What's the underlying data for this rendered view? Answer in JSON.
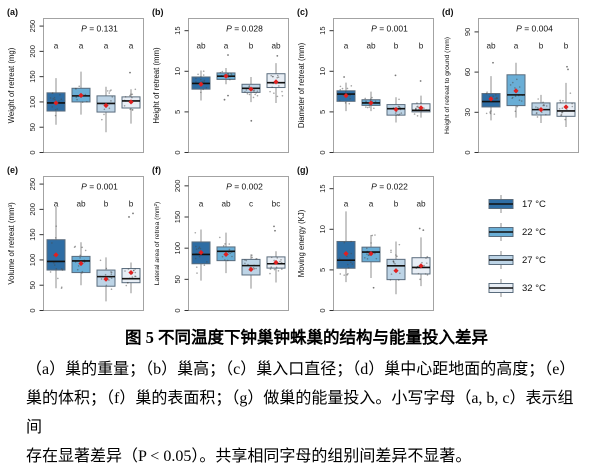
{
  "colors": {
    "t17": "#2e6da4",
    "t22": "#6aaed6",
    "t27": "#bdd4e6",
    "t32": "#e8eef5",
    "box_stroke": "#5a6c7d",
    "median": "#111111",
    "mean_marker": "#e02020",
    "whisker": "#8f8f8f",
    "frame": "#a3a3a3",
    "jitter_dot": "#4a4a4a",
    "tick_text": "#222222"
  },
  "chart_data": {
    "type": "box",
    "temperatures": [
      "17 °C",
      "22 °C",
      "27 °C",
      "32 °C"
    ],
    "legend_position": "right of bottom row",
    "mean_marker": "red diamond",
    "panels": [
      {
        "id": "a",
        "label": "(a)",
        "p_label": "P = 0.131",
        "letters": [
          "a",
          "a",
          "a",
          "a"
        ],
        "ylabel": "Weight of retreat (mg)",
        "yticks": [
          0,
          50,
          100,
          150,
          200,
          250
        ],
        "ylim": [
          0,
          265
        ],
        "groups": [
          {
            "lo": 55,
            "q1": 82,
            "med": 98,
            "q3": 118,
            "hi": 147,
            "mean": 98,
            "outliers": []
          },
          {
            "lo": 75,
            "q1": 100,
            "med": 112,
            "q3": 127,
            "hi": 160,
            "mean": 113,
            "outliers": []
          },
          {
            "lo": 40,
            "q1": 80,
            "med": 97,
            "q3": 112,
            "hi": 130,
            "mean": 93,
            "outliers": []
          },
          {
            "lo": 57,
            "q1": 88,
            "med": 102,
            "q3": 110,
            "hi": 125,
            "mean": 100,
            "outliers": [
              158
            ]
          }
        ]
      },
      {
        "id": "b",
        "label": "(b)",
        "p_label": "P = 0.028",
        "letters": [
          "ab",
          "a",
          "b",
          "ab"
        ],
        "ylabel": "Height of retreat (mm)",
        "yticks": [
          0,
          5,
          10,
          15
        ],
        "ylim": [
          0,
          16.5
        ],
        "groups": [
          {
            "lo": 6.4,
            "q1": 7.8,
            "med": 8.5,
            "q3": 9.3,
            "hi": 10.1,
            "mean": 8.4,
            "outliers": []
          },
          {
            "lo": 8.4,
            "q1": 9.0,
            "med": 9.4,
            "q3": 9.8,
            "hi": 10.4,
            "mean": 9.4,
            "outliers": [
              12.0,
              7.0,
              6.5
            ]
          },
          {
            "lo": 6.2,
            "q1": 7.4,
            "med": 7.9,
            "q3": 8.4,
            "hi": 9.3,
            "mean": 7.8,
            "outliers": [
              3.9
            ]
          },
          {
            "lo": 6.1,
            "q1": 8.0,
            "med": 8.6,
            "q3": 9.7,
            "hi": 11.0,
            "mean": 8.7,
            "outliers": [
              11.9
            ]
          }
        ]
      },
      {
        "id": "c",
        "label": "(c)",
        "p_label": "P = 0.001",
        "letters": [
          "a",
          "ab",
          "b",
          "b"
        ],
        "ylabel": "Diameter of retreat (mm)",
        "yticks": [
          0,
          5,
          10,
          15
        ],
        "ylim": [
          0,
          16.5
        ],
        "groups": [
          {
            "lo": 5.1,
            "q1": 6.3,
            "med": 7.2,
            "q3": 7.6,
            "hi": 8.6,
            "mean": 7.0,
            "outliers": [
              9.3
            ]
          },
          {
            "lo": 5.1,
            "q1": 5.8,
            "med": 6.1,
            "q3": 6.5,
            "hi": 7.5,
            "mean": 6.1,
            "outliers": []
          },
          {
            "lo": 3.7,
            "q1": 4.6,
            "med": 5.4,
            "q3": 5.9,
            "hi": 6.8,
            "mean": 5.3,
            "outliers": [
              9.5
            ]
          },
          {
            "lo": 4.3,
            "q1": 5.0,
            "med": 5.2,
            "q3": 6.0,
            "hi": 7.0,
            "mean": 5.5,
            "outliers": [
              8.8
            ]
          }
        ]
      },
      {
        "id": "d",
        "label": "(d)",
        "p_label": "P = 0.004",
        "letters": [
          "ab",
          "a",
          "b",
          "b"
        ],
        "ylabel": "Height of retreat to ground (mm)",
        "yticks": [
          0,
          30,
          60,
          90
        ],
        "ylim": [
          0,
          100
        ],
        "groups": [
          {
            "lo": 24,
            "q1": 34,
            "med": 38,
            "q3": 44,
            "hi": 57,
            "mean": 40,
            "outliers": [
              67
            ]
          },
          {
            "lo": 26,
            "q1": 35,
            "med": 43,
            "q3": 58,
            "hi": 67,
            "mean": 46,
            "outliers": []
          },
          {
            "lo": 22,
            "q1": 28,
            "med": 32,
            "q3": 37,
            "hi": 43,
            "mean": 32,
            "outliers": []
          },
          {
            "lo": 19,
            "q1": 27,
            "med": 31,
            "q3": 37,
            "hi": 52,
            "mean": 34,
            "outliers": [
              62,
              64
            ]
          }
        ]
      },
      {
        "id": "e",
        "label": "(e)",
        "p_label": "P = 0.001",
        "letters": [
          "a",
          "ab",
          "b",
          "b"
        ],
        "ylabel": "Volume of retreat (mm³)",
        "yticks": [
          0,
          50,
          100,
          150,
          200,
          250
        ],
        "ylim": [
          0,
          265
        ],
        "groups": [
          {
            "lo": 44,
            "q1": 80,
            "med": 97,
            "q3": 140,
            "hi": 205,
            "mean": 110,
            "outliers": []
          },
          {
            "lo": 50,
            "q1": 75,
            "med": 98,
            "q3": 107,
            "hi": 135,
            "mean": 93,
            "outliers": []
          },
          {
            "lo": 18,
            "q1": 48,
            "med": 67,
            "q3": 80,
            "hi": 105,
            "mean": 62,
            "outliers": []
          },
          {
            "lo": 34,
            "q1": 55,
            "med": 63,
            "q3": 83,
            "hi": 95,
            "mean": 75,
            "outliers": [
              185,
              192
            ]
          }
        ]
      },
      {
        "id": "f",
        "label": "(f)",
        "p_label": "P = 0.002",
        "letters": [
          "a",
          "ab",
          "c",
          "bc"
        ],
        "ylabel": "Lateral area of retrea (mm²)",
        "yticks": [
          0,
          50,
          100,
          150,
          200
        ],
        "ylim": [
          0,
          215
        ],
        "groups": [
          {
            "lo": 48,
            "q1": 75,
            "med": 90,
            "q3": 110,
            "hi": 130,
            "mean": 93,
            "outliers": []
          },
          {
            "lo": 60,
            "q1": 80,
            "med": 95,
            "q3": 102,
            "hi": 125,
            "mean": 90,
            "outliers": []
          },
          {
            "lo": 35,
            "q1": 57,
            "med": 72,
            "q3": 82,
            "hi": 90,
            "mean": 66,
            "outliers": []
          },
          {
            "lo": 45,
            "q1": 68,
            "med": 75,
            "q3": 86,
            "hi": 95,
            "mean": 77,
            "outliers": [
              128,
              135
            ]
          }
        ]
      },
      {
        "id": "g",
        "label": "(g)",
        "p_label": "P = 0.022",
        "letters": [
          "a",
          "a",
          "b",
          "ab"
        ],
        "ylabel": "Moving energy (KJ)",
        "yticks": [
          0,
          5,
          10,
          15
        ],
        "ylim": [
          0,
          16.5
        ],
        "groups": [
          {
            "lo": 3.5,
            "q1": 5.2,
            "med": 6.2,
            "q3": 8.5,
            "hi": 12.2,
            "mean": 7.0,
            "outliers": []
          },
          {
            "lo": 4.0,
            "q1": 6.0,
            "med": 7.2,
            "q3": 7.8,
            "hi": 9.3,
            "mean": 7.0,
            "outliers": [
              2.8
            ]
          },
          {
            "lo": 2.0,
            "q1": 3.8,
            "med": 5.5,
            "q3": 6.3,
            "hi": 8.5,
            "mean": 4.9,
            "outliers": []
          },
          {
            "lo": 3.0,
            "q1": 4.5,
            "med": 5.3,
            "q3": 6.5,
            "hi": 9.0,
            "mean": 5.5,
            "outliers": [
              9.9,
              10.1
            ]
          }
        ]
      }
    ]
  },
  "caption": {
    "title": "图 5 不同温度下钟巢钟蛛巢的结构与能量投入差异",
    "lines": [
      "（a）巢的重量；（b）巢高；（c）巢入口直径；（d）巢中心距地面的高度；（e）",
      "巢的体积；（f）巢的表面积；（g）做巢的能量投入。小写字母（a, b, c）表示组间",
      "存在显著差异（P < 0.05）。共享相同字母的组别间差异不显著。"
    ]
  }
}
